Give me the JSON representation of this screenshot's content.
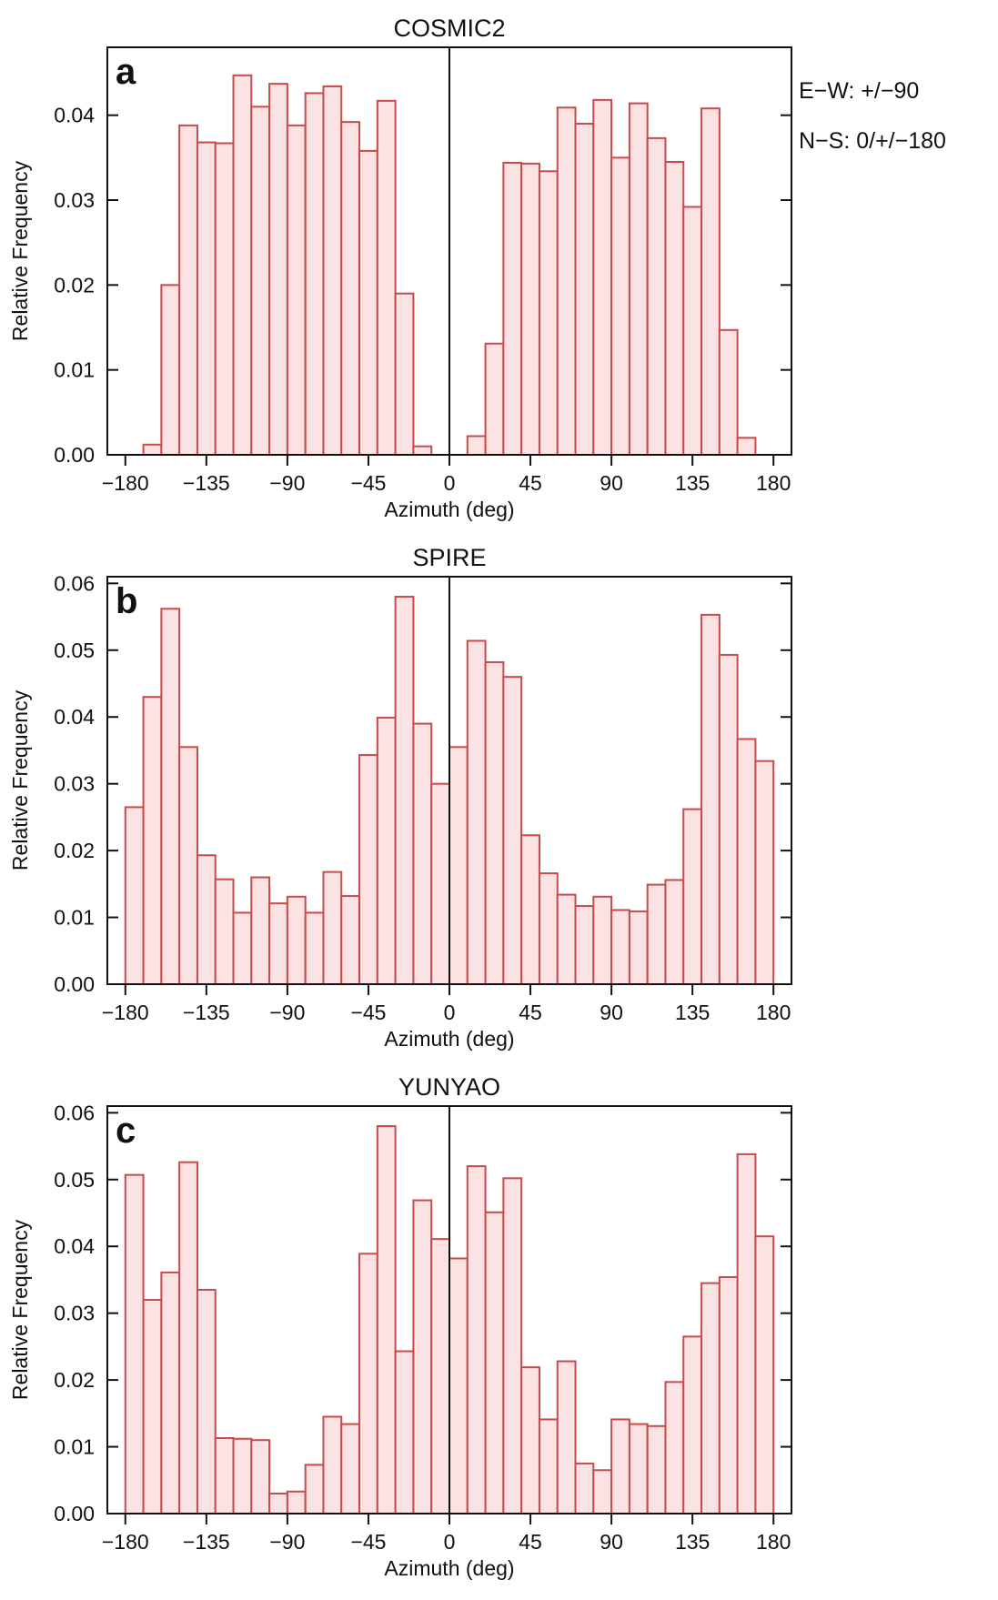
{
  "notes": [
    "E−W: +/−90",
    "N−S: 0/+/−180"
  ],
  "chart_data": [
    {
      "type": "bar",
      "panel": "a",
      "title": "COSMIC2",
      "xlabel": "Azimuth (deg)",
      "ylabel": "Relative Frequency",
      "xlim": [
        -190,
        190
      ],
      "ylim": [
        0,
        0.048
      ],
      "xticks": [
        -180,
        -135,
        -90,
        -45,
        0,
        45,
        90,
        135,
        180
      ],
      "xtick_labels": [
        "−180",
        "−135",
        "−90",
        "−45",
        "0",
        "45",
        "90",
        "135",
        "180"
      ],
      "yticks": [
        0,
        0.01,
        0.02,
        0.03,
        0.04
      ],
      "ytick_labels": [
        "0.00",
        "0.01",
        "0.02",
        "0.03",
        "0.04"
      ],
      "bin_width": 10,
      "bin_start": -180,
      "values": [
        0,
        0.0012,
        0.02,
        0.0388,
        0.0368,
        0.0367,
        0.0447,
        0.041,
        0.0437,
        0.0388,
        0.0426,
        0.0434,
        0.0392,
        0.0358,
        0.0417,
        0.019,
        0.001,
        0,
        0,
        0.0022,
        0.0131,
        0.0344,
        0.0343,
        0.0334,
        0.0409,
        0.039,
        0.0418,
        0.035,
        0.0414,
        0.0373,
        0.0345,
        0.0292,
        0.0408,
        0.0147,
        0.002,
        0
      ],
      "grid": false,
      "center_line": 0
    },
    {
      "type": "bar",
      "panel": "b",
      "title": "SPIRE",
      "xlabel": "Azimuth (deg)",
      "ylabel": "Relative Frequency",
      "xlim": [
        -190,
        190
      ],
      "ylim": [
        0,
        0.061
      ],
      "xticks": [
        -180,
        -135,
        -90,
        -45,
        0,
        45,
        90,
        135,
        180
      ],
      "xtick_labels": [
        "−180",
        "−135",
        "−90",
        "−45",
        "0",
        "45",
        "90",
        "135",
        "180"
      ],
      "yticks": [
        0,
        0.01,
        0.02,
        0.03,
        0.04,
        0.05,
        0.06
      ],
      "ytick_labels": [
        "0.00",
        "0.01",
        "0.02",
        "0.03",
        "0.04",
        "0.05",
        "0.06"
      ],
      "bin_width": 10,
      "bin_start": -180,
      "values": [
        0.0265,
        0.043,
        0.0562,
        0.0355,
        0.0193,
        0.0157,
        0.0107,
        0.016,
        0.0121,
        0.0131,
        0.0107,
        0.0168,
        0.0132,
        0.0343,
        0.0399,
        0.058,
        0.039,
        0.03,
        0.0355,
        0.0514,
        0.0482,
        0.046,
        0.0223,
        0.0166,
        0.0134,
        0.0117,
        0.0131,
        0.0111,
        0.0109,
        0.0149,
        0.0156,
        0.0262,
        0.0553,
        0.0493,
        0.0367,
        0.0334
      ],
      "grid": false,
      "center_line": 0
    },
    {
      "type": "bar",
      "panel": "c",
      "title": "YUNYAO",
      "xlabel": "Azimuth (deg)",
      "ylabel": "Relative Frequency",
      "xlim": [
        -190,
        190
      ],
      "ylim": [
        0,
        0.061
      ],
      "xticks": [
        -180,
        -135,
        -90,
        -45,
        0,
        45,
        90,
        135,
        180
      ],
      "xtick_labels": [
        "−180",
        "−135",
        "−90",
        "−45",
        "0",
        "45",
        "90",
        "135",
        "180"
      ],
      "yticks": [
        0,
        0.01,
        0.02,
        0.03,
        0.04,
        0.05,
        0.06
      ],
      "ytick_labels": [
        "0.00",
        "0.01",
        "0.02",
        "0.03",
        "0.04",
        "0.05",
        "0.06"
      ],
      "bin_width": 10,
      "bin_start": -180,
      "values": [
        0.0507,
        0.032,
        0.0361,
        0.0526,
        0.0335,
        0.0113,
        0.0112,
        0.011,
        0.003,
        0.0033,
        0.0073,
        0.0145,
        0.0134,
        0.0389,
        0.058,
        0.0243,
        0.0469,
        0.0411,
        0.0382,
        0.052,
        0.0451,
        0.0502,
        0.0219,
        0.0141,
        0.0228,
        0.0075,
        0.0065,
        0.0141,
        0.0134,
        0.0131,
        0.0197,
        0.0265,
        0.0345,
        0.0354,
        0.0538,
        0.0415
      ],
      "grid": false,
      "center_line": 0
    }
  ],
  "colors": {
    "bar_fill": "#fbe3e3",
    "bar_stroke": "#c94a4a",
    "axis": "#111111",
    "text": "#111111"
  }
}
